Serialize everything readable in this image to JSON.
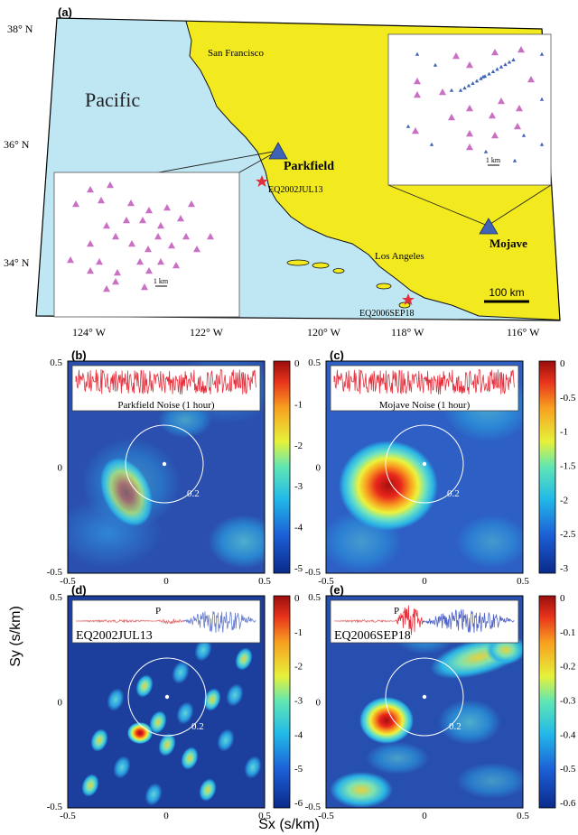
{
  "map": {
    "panel_label": "(a)",
    "lat_labels": [
      "38° N",
      "36° N",
      "34° N"
    ],
    "lon_labels": [
      "124° W",
      "122° W",
      "120° W",
      "118° W",
      "116° W"
    ],
    "ocean_label": "Pacific",
    "places": [
      "San Francisco",
      "Parkfield",
      "Mojave",
      "Los Angeles"
    ],
    "events": [
      "EQ2002JUL13",
      "EQ2006SEP18"
    ],
    "scale_bar": "100 km",
    "inset_scale": "1 km"
  },
  "panels": [
    {
      "label": "(b)",
      "title": "Parkfield Noise (1 hour)",
      "colorbar": [
        "0",
        "-1",
        "-2",
        "-3",
        "-4",
        "-5"
      ]
    },
    {
      "label": "(c)",
      "title": "Mojave Noise (1 hour)",
      "colorbar": [
        "0",
        "-0.5",
        "-1",
        "-1.5",
        "-2",
        "-2.5",
        "-3"
      ]
    },
    {
      "label": "(d)",
      "title": "EQ2002JUL13",
      "phase": "P",
      "colorbar": [
        "0",
        "-1",
        "-2",
        "-3",
        "-4",
        "-5",
        "-6"
      ]
    },
    {
      "label": "(e)",
      "title": "EQ2006SEP18",
      "phase": "P",
      "colorbar": [
        "0",
        "-0.1",
        "-0.2",
        "-0.3",
        "-0.4",
        "-0.5",
        "-0.6"
      ]
    }
  ],
  "axes": {
    "ylabel": "Sy (s/km)",
    "xlabel": "Sx (s/km)",
    "ticks": [
      "-0.5",
      "0",
      "0.5"
    ],
    "circle_label": "0.2"
  },
  "colors": {
    "ocean": "#bfe6f3",
    "land": "#f2ea1e",
    "triangle_pink": "#c96fc4",
    "triangle_blue": "#3f63b6",
    "star": "#e32f3c"
  }
}
